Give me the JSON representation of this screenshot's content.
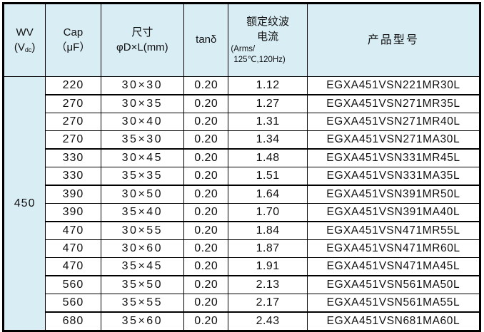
{
  "colors": {
    "header_bg": "#d9edf5",
    "border": "#000000",
    "text": "#111111"
  },
  "header": {
    "wv_line1": "WV",
    "wv_paren_open": "(V",
    "wv_sub": "dc",
    "wv_paren_close": ")",
    "cap_line1": "Cap",
    "cap_line2": "（μF）",
    "size_line1": "尺寸",
    "size_line2": "φD×L(mm)",
    "tand": "tanδ",
    "ripple_line1": "额定纹波",
    "ripple_line2": "电流",
    "ripple_line3": "(Arms/",
    "ripple_line4": "125℃,120Hz)",
    "model": "产品型号"
  },
  "wv_value": "450",
  "rows": [
    {
      "cap": "220",
      "size": "30×30",
      "tand": "0.20",
      "ripple": "1.12",
      "model": "EGXA451VSN221MR30L",
      "group_end": true
    },
    {
      "cap": "270",
      "size": "30×35",
      "tand": "0.20",
      "ripple": "1.27",
      "model": "EGXA451VSN271MR35L",
      "group_end": false
    },
    {
      "cap": "270",
      "size": "30×40",
      "tand": "0.20",
      "ripple": "1.31",
      "model": "EGXA451VSN271MR40L",
      "group_end": false
    },
    {
      "cap": "270",
      "size": "35×30",
      "tand": "0.20",
      "ripple": "1.34",
      "model": "EGXA451VSN271MA30L",
      "group_end": true
    },
    {
      "cap": "330",
      "size": "30×45",
      "tand": "0.20",
      "ripple": "1.48",
      "model": "EGXA451VSN331MR45L",
      "group_end": false
    },
    {
      "cap": "330",
      "size": "35×35",
      "tand": "0.20",
      "ripple": "1.51",
      "model": "EGXA451VSN331MA35L",
      "group_end": true
    },
    {
      "cap": "390",
      "size": "30×50",
      "tand": "0.20",
      "ripple": "1.64",
      "model": "EGXA451VSN391MR50L",
      "group_end": false
    },
    {
      "cap": "390",
      "size": "35×40",
      "tand": "0.20",
      "ripple": "1.70",
      "model": "EGXA451VSN391MA40L",
      "group_end": true
    },
    {
      "cap": "470",
      "size": "30×55",
      "tand": "0.20",
      "ripple": "1.84",
      "model": "EGXA451VSN471MR55L",
      "group_end": false
    },
    {
      "cap": "470",
      "size": "30×60",
      "tand": "0.20",
      "ripple": "1.87",
      "model": "EGXA451VSN471MR60L",
      "group_end": false
    },
    {
      "cap": "470",
      "size": "35×45",
      "tand": "0.20",
      "ripple": "1.91",
      "model": "EGXA451VSN471MA45L",
      "group_end": true
    },
    {
      "cap": "560",
      "size": "35×50",
      "tand": "0.20",
      "ripple": "2.13",
      "model": "EGXA451VSN561MA50L",
      "group_end": false
    },
    {
      "cap": "560",
      "size": "35×55",
      "tand": "0.20",
      "ripple": "2.17",
      "model": "EGXA451VSN561MA55L",
      "group_end": true
    },
    {
      "cap": "680",
      "size": "35×60",
      "tand": "0.20",
      "ripple": "2.43",
      "model": "EGXA451VSN681MA60L",
      "group_end": false
    }
  ]
}
